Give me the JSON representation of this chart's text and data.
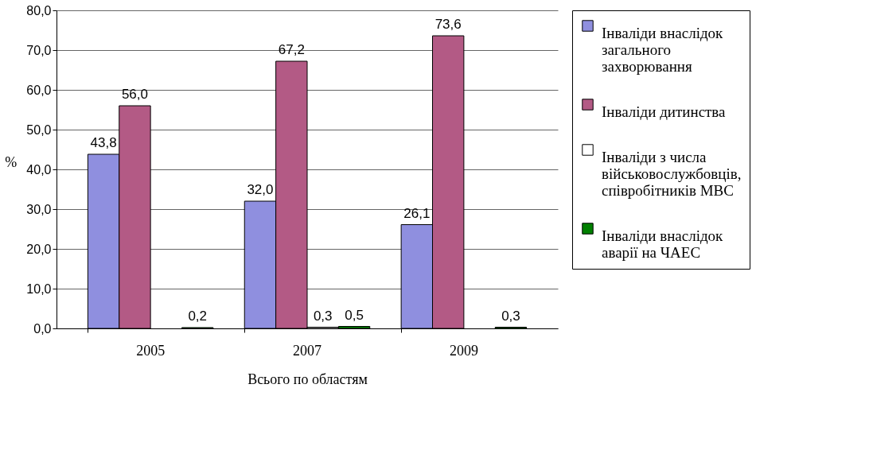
{
  "chart_data": {
    "type": "bar",
    "xlabel": "Всього по областям",
    "ylabel": "%",
    "categories": [
      "2005",
      "2007",
      "2009"
    ],
    "ylim": [
      0,
      80
    ],
    "yticks": [
      {
        "value": 0,
        "label": "0,0"
      },
      {
        "value": 10,
        "label": "10,0"
      },
      {
        "value": 20,
        "label": "20,0"
      },
      {
        "value": 30,
        "label": "30,0"
      },
      {
        "value": 40,
        "label": "40,0"
      },
      {
        "value": 50,
        "label": "50,0"
      },
      {
        "value": 60,
        "label": "60,0"
      },
      {
        "value": 70,
        "label": "70,0"
      },
      {
        "value": 80,
        "label": "80,0"
      }
    ],
    "grid": "y",
    "legend": "right",
    "series": [
      {
        "name": "Інваліди внаслідок загального захворювання",
        "color": "#8f8fdf",
        "values": [
          43.8,
          32.0,
          26.1
        ],
        "value_labels": [
          "43,8",
          "32,0",
          "26,1"
        ]
      },
      {
        "name": "Інваліди дитинства",
        "color": "#b35a85",
        "values": [
          56.0,
          67.2,
          73.6
        ],
        "value_labels": [
          "56,0",
          "67,2",
          "73,6"
        ]
      },
      {
        "name": "Інваліди з числа військовослужбовців, співробітників МВС",
        "color": "#ffffff",
        "values": [
          null,
          0.3,
          null
        ],
        "value_labels": [
          null,
          "0,3",
          null
        ]
      },
      {
        "name": "Інваліди внаслідок аварії на ЧАЕС",
        "color": "#008000",
        "values": [
          0.2,
          0.5,
          0.3
        ],
        "value_labels": [
          "0,2",
          "0,5",
          "0,3"
        ]
      }
    ]
  }
}
